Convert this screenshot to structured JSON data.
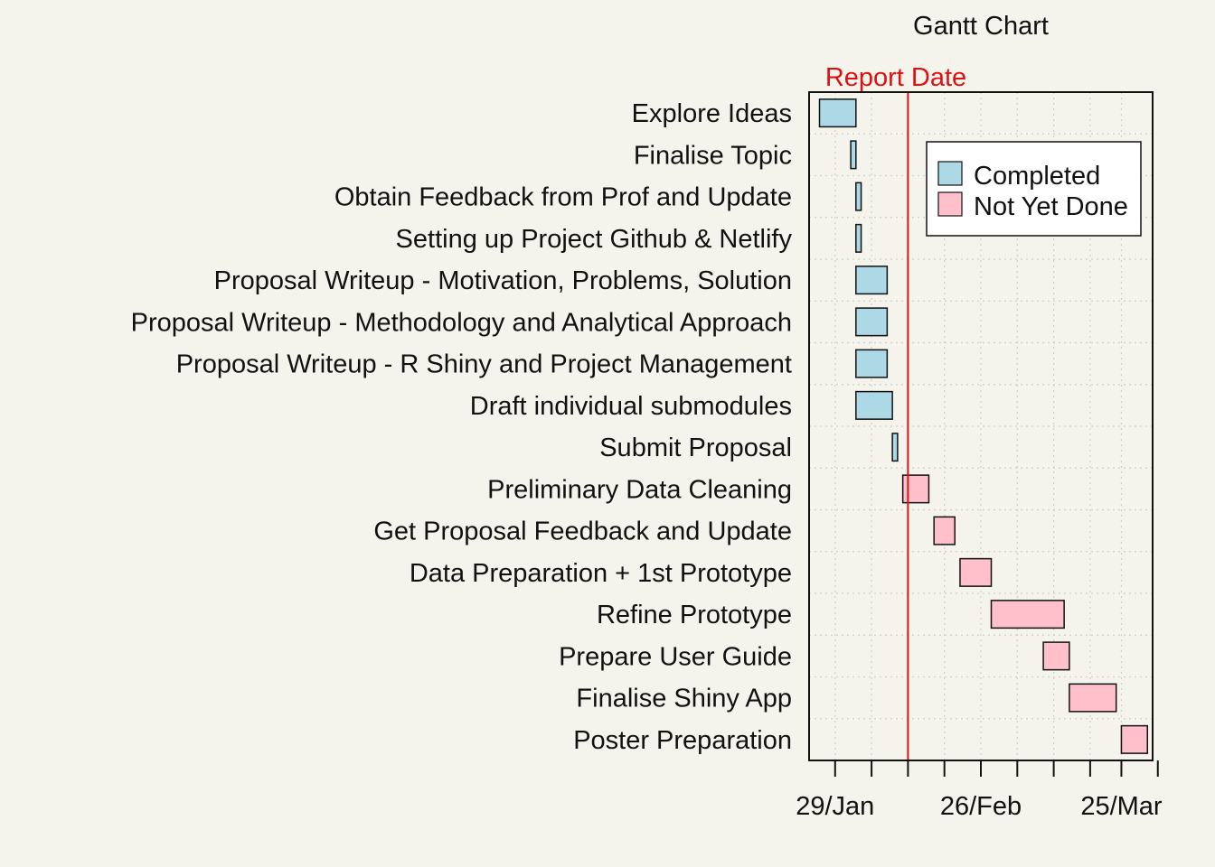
{
  "chart_data": {
    "type": "gantt",
    "title": "Gantt Chart",
    "report_date": {
      "label": "Report Date",
      "date": "2022-02-12",
      "color": "#dd1111"
    },
    "x_axis": {
      "start": "2022-01-24",
      "end": "2022-03-31",
      "major_ticks": [
        {
          "date": "2022-01-29",
          "label": "29/Jan"
        },
        {
          "date": "2022-02-26",
          "label": "26/Feb"
        },
        {
          "date": "2022-03-25",
          "label": "25/Mar"
        }
      ],
      "minor_ticks": [
        "2022-02-05",
        "2022-02-12",
        "2022-02-19",
        "2022-03-05",
        "2022-03-12",
        "2022-03-19",
        "2022-04-01"
      ]
    },
    "legend": {
      "position": "top-right",
      "items": [
        {
          "label": "Completed",
          "color": "#add8e6"
        },
        {
          "label": "Not Yet Done",
          "color": "#ffc0cb"
        }
      ]
    },
    "grid": true,
    "tasks": [
      {
        "name": "Explore Ideas",
        "start": "2022-01-26",
        "end": "2022-02-02",
        "status": "Completed"
      },
      {
        "name": "Finalise Topic",
        "start": "2022-02-01",
        "end": "2022-02-02",
        "status": "Completed"
      },
      {
        "name": "Obtain Feedback from Prof and Update",
        "start": "2022-02-02",
        "end": "2022-02-03",
        "status": "Completed"
      },
      {
        "name": "Setting up Project Github & Netlify",
        "start": "2022-02-02",
        "end": "2022-02-03",
        "status": "Completed"
      },
      {
        "name": "Proposal Writeup - Motivation, Problems, Solution",
        "start": "2022-02-02",
        "end": "2022-02-08",
        "status": "Completed"
      },
      {
        "name": "Proposal Writeup - Methodology and Analytical Approach",
        "start": "2022-02-02",
        "end": "2022-02-08",
        "status": "Completed"
      },
      {
        "name": "Proposal Writeup - R Shiny and Project Management",
        "start": "2022-02-02",
        "end": "2022-02-08",
        "status": "Completed"
      },
      {
        "name": "Draft individual submodules",
        "start": "2022-02-02",
        "end": "2022-02-09",
        "status": "Completed"
      },
      {
        "name": "Submit Proposal",
        "start": "2022-02-09",
        "end": "2022-02-10",
        "status": "Completed"
      },
      {
        "name": "Preliminary Data Cleaning",
        "start": "2022-02-11",
        "end": "2022-02-16",
        "status": "Not Yet Done"
      },
      {
        "name": "Get Proposal Feedback and Update",
        "start": "2022-02-17",
        "end": "2022-02-21",
        "status": "Not Yet Done"
      },
      {
        "name": "Data Preparation + 1st Prototype",
        "start": "2022-02-22",
        "end": "2022-02-28",
        "status": "Not Yet Done"
      },
      {
        "name": "Refine Prototype",
        "start": "2022-02-28",
        "end": "2022-03-14",
        "status": "Not Yet Done"
      },
      {
        "name": "Prepare User Guide",
        "start": "2022-03-10",
        "end": "2022-03-15",
        "status": "Not Yet Done"
      },
      {
        "name": "Finalise Shiny App",
        "start": "2022-03-15",
        "end": "2022-03-24",
        "status": "Not Yet Done"
      },
      {
        "name": "Poster Preparation",
        "start": "2022-03-25",
        "end": "2022-03-30",
        "status": "Not Yet Done"
      }
    ]
  }
}
